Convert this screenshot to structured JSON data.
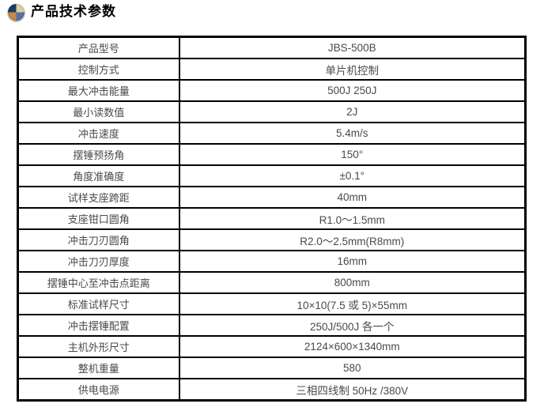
{
  "header": {
    "title": "产品技术参数",
    "icon": "quadrant-sphere-icon",
    "icon_colors": {
      "top_left": "#1e3a67",
      "top_right": "#d9d2a6",
      "bottom_left": "#c58a45",
      "bottom_right": "#5f6fa8"
    }
  },
  "table": {
    "columns": [
      "parameter",
      "value"
    ],
    "rows": [
      {
        "label": "产品型号",
        "value": "JBS-500B"
      },
      {
        "label": "控制方式",
        "value": "单片机控制"
      },
      {
        "label": "最大冲击能量",
        "value": "500J 250J"
      },
      {
        "label": "最小读数值",
        "value": "2J"
      },
      {
        "label": "冲击速度",
        "value": "5.4m/s"
      },
      {
        "label": "摆锤预扬角",
        "value": "150°"
      },
      {
        "label": "角度准确度",
        "value": "±0.1°"
      },
      {
        "label": "试样支座跨距",
        "value": "40mm"
      },
      {
        "label": "支座钳口圆角",
        "value": "R1.0～1.5mm"
      },
      {
        "label": "冲击刀刃圆角",
        "value": "R2.0～2.5mm(R8mm)"
      },
      {
        "label": "冲击刀刃厚度",
        "value": "16mm"
      },
      {
        "label": "摆锤中心至冲击点距离",
        "value": "800mm"
      },
      {
        "label": "标准试样尺寸",
        "value": "10×10(7.5 或 5)×55mm"
      },
      {
        "label": "冲击摆锤配置",
        "value": "250J/500J 各一个"
      },
      {
        "label": "主机外形尺寸",
        "value": "2124×600×1340mm"
      },
      {
        "label": "整机重量",
        "value": "580"
      },
      {
        "label": "供电电源",
        "value": "三相四线制 50Hz /380V"
      }
    ]
  }
}
